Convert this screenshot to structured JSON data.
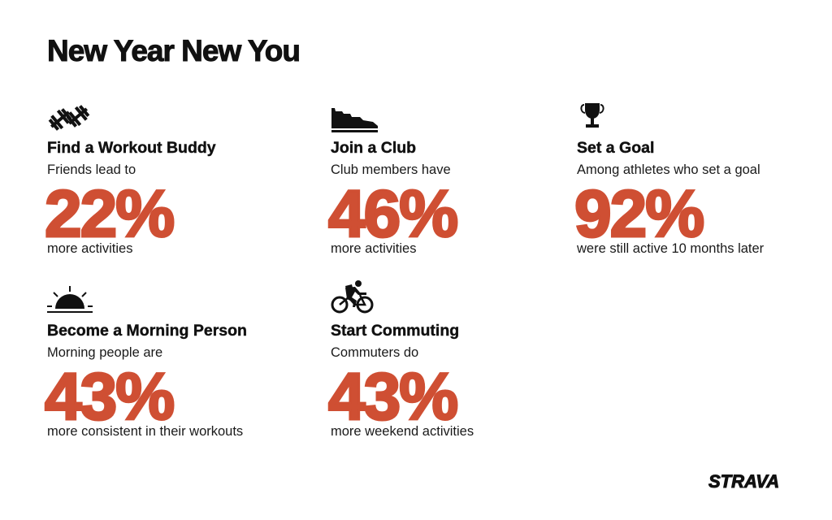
{
  "title": "New Year New You",
  "accent_color": "#cf4f33",
  "cards": [
    {
      "icon": "dumbbell-icon",
      "title": "Find a Workout Buddy",
      "subtitle": "Friends lead to",
      "value": "22%",
      "footer": "more activities"
    },
    {
      "icon": "running-shoe-icon",
      "title": "Join a Club",
      "subtitle": "Club members have",
      "value": "46%",
      "footer": "more activities"
    },
    {
      "icon": "trophy-icon",
      "title": "Set a Goal",
      "subtitle": "Among athletes who set a goal",
      "value": "92%",
      "footer": "were still active 10 months later"
    },
    {
      "icon": "sunrise-icon",
      "title": "Become a Morning Person",
      "subtitle": "Morning people are",
      "value": "43%",
      "footer": "more consistent in their workouts"
    },
    {
      "icon": "cyclist-icon",
      "title": "Start Commuting",
      "subtitle": "Commuters do",
      "value": "43%",
      "footer": "more weekend activities"
    }
  ],
  "logo": "STRAVA"
}
